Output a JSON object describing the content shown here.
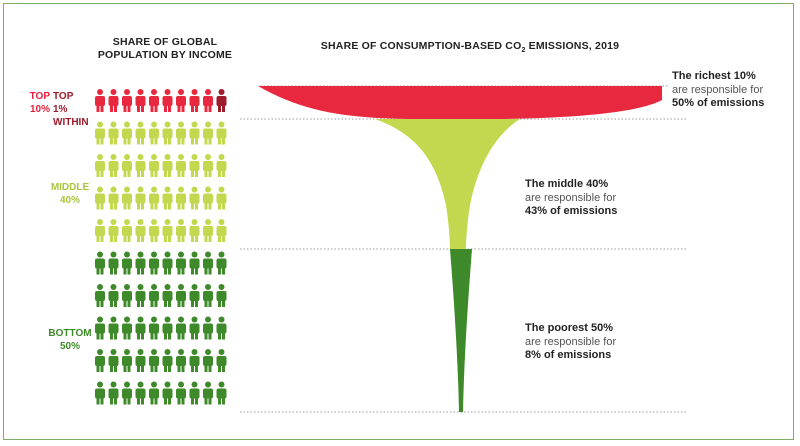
{
  "header": {
    "left_line1": "SHARE OF GLOBAL",
    "left_line2": "POPULATION BY INCOME",
    "right_title": "SHARE OF CONSUMPTION-BASED CO",
    "right_sub": "2",
    "right_suffix": " EMISSIONS, 2019"
  },
  "groups": {
    "top": {
      "line1": "TOP",
      "line2": "10%",
      "color": "#e31f3c"
    },
    "top1": {
      "line1": "TOP 1%",
      "line2": "WITHIN",
      "color": "#9e1b2c"
    },
    "middle": {
      "line1": "MIDDLE",
      "line2": "40%",
      "color": "#a8c63b"
    },
    "bottom": {
      "line1": "BOTTOM",
      "line2": "50%",
      "color": "#3e8a2a"
    }
  },
  "annotations": {
    "top": {
      "bold": "The richest 10%",
      "line2": "are responsible for",
      "line3": "50% of emissions"
    },
    "middle": {
      "bold": "The middle 40%",
      "line2": "are responsible for",
      "line3": "43% of emissions"
    },
    "bottom": {
      "bold": "The poorest 50%",
      "line2": "are responsible for",
      "line3": "8% of emissions"
    }
  },
  "population": {
    "per_row": 10,
    "rows": [
      {
        "group": "top",
        "highlight_last": true
      },
      {
        "group": "middle"
      },
      {
        "group": "middle"
      },
      {
        "group": "middle"
      },
      {
        "group": "middle"
      },
      {
        "group": "bottom"
      },
      {
        "group": "bottom"
      },
      {
        "group": "bottom"
      },
      {
        "group": "bottom"
      },
      {
        "group": "bottom"
      }
    ]
  },
  "emissions_share": {
    "top": 50,
    "middle": 43,
    "bottom": 8
  },
  "colors": {
    "top": "#e8283f",
    "top1": "#9e1b2c",
    "middle": "#c3d84e",
    "bottom": "#3e8a2a",
    "frame": "#7fae6a",
    "dotted": "#999999"
  }
}
